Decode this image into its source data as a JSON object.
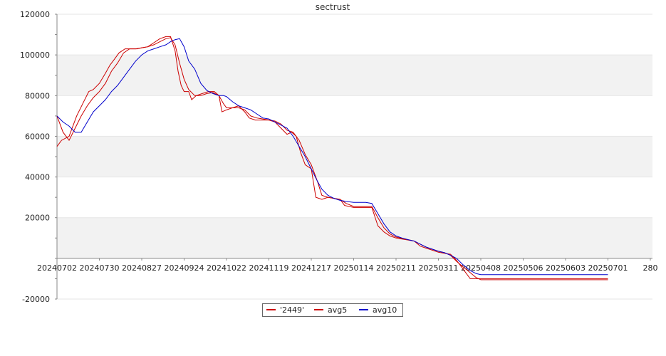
{
  "chart_data": {
    "type": "line",
    "title": "sectrust",
    "xlabel": "",
    "ylabel": "",
    "x_ticks": [
      "20240702",
      "20240730",
      "20240827",
      "20240924",
      "20241022",
      "20241119",
      "20241217",
      "20250114",
      "20250211",
      "20250311",
      "20250408",
      "20250506",
      "20250603",
      "20250701",
      "280"
    ],
    "y_ticks": [
      -20000,
      20000,
      40000,
      60000,
      80000,
      100000,
      120000
    ],
    "ylim": [
      -20000,
      120000
    ],
    "grid": "horizontal bands",
    "legend_position": "bottom-center",
    "colors": {
      "2449": "#cc0000",
      "avg5": "#cc0000",
      "avg10": "#0000cc",
      "band": "#f2f2f2",
      "grid": "#e6e6e6"
    },
    "series": [
      {
        "name": "'2449'",
        "points": [
          [
            "20240702",
            55000
          ],
          [
            "20240705",
            58000
          ],
          [
            "20240710",
            60000
          ],
          [
            "20240715",
            70000
          ],
          [
            "20240719",
            76000
          ],
          [
            "20240723",
            82000
          ],
          [
            "20240726",
            83000
          ],
          [
            "20240730",
            86000
          ],
          [
            "20240803",
            91000
          ],
          [
            "20240806",
            95000
          ],
          [
            "20240809",
            98000
          ],
          [
            "20240812",
            101000
          ],
          [
            "20240816",
            103000
          ],
          [
            "20240820",
            103000
          ],
          [
            "20240824",
            103000
          ],
          [
            "20240827",
            103500
          ],
          [
            "20240831",
            104000
          ],
          [
            "20240904",
            106000
          ],
          [
            "20240908",
            108000
          ],
          [
            "20240912",
            109000
          ],
          [
            "20240915",
            109000
          ],
          [
            "20240918",
            102000
          ],
          [
            "20240920",
            92000
          ],
          [
            "20240922",
            85000
          ],
          [
            "20240924",
            82000
          ],
          [
            "20240927",
            82000
          ],
          [
            "20240929",
            78000
          ],
          [
            "20241002",
            80000
          ],
          [
            "20241006",
            81000
          ],
          [
            "20241010",
            82000
          ],
          [
            "20241014",
            82000
          ],
          [
            "20241017",
            80000
          ],
          [
            "20241019",
            72000
          ],
          [
            "20241022",
            73000
          ],
          [
            "20241026",
            74000
          ],
          [
            "20241030",
            75000
          ],
          [
            "20241103",
            72000
          ],
          [
            "20241106",
            69000
          ],
          [
            "20241110",
            68000
          ],
          [
            "20241114",
            68000
          ],
          [
            "20241119",
            68000
          ],
          [
            "20241123",
            67000
          ],
          [
            "20241127",
            64000
          ],
          [
            "20241201",
            61000
          ],
          [
            "20241204",
            62000
          ],
          [
            "20241207",
            60000
          ],
          [
            "20241210",
            52000
          ],
          [
            "20241213",
            46000
          ],
          [
            "20241217",
            44000
          ],
          [
            "20241220",
            30000
          ],
          [
            "20241224",
            29000
          ],
          [
            "20241228",
            30000
          ],
          [
            "20250101",
            29500
          ],
          [
            "20250105",
            29000
          ],
          [
            "20250108",
            26000
          ],
          [
            "20250114",
            25000
          ],
          [
            "20250118",
            25000
          ],
          [
            "20250122",
            25000
          ],
          [
            "20250126",
            25000
          ],
          [
            "20250130",
            16000
          ],
          [
            "20250203",
            13000
          ],
          [
            "20250207",
            11000
          ],
          [
            "20250211",
            10000
          ],
          [
            "20250215",
            9500
          ],
          [
            "20250219",
            9000
          ],
          [
            "20250223",
            8500
          ],
          [
            "20250227",
            6000
          ],
          [
            "20250303",
            5000
          ],
          [
            "20250307",
            4000
          ],
          [
            "20250311",
            3000
          ],
          [
            "20250315",
            2500
          ],
          [
            "20250319",
            2000
          ],
          [
            "20250323",
            -1000
          ],
          [
            "20250327",
            -5000
          ],
          [
            "20250401",
            -10000
          ],
          [
            "20250405",
            -10000
          ],
          [
            "20250408",
            -10000
          ],
          [
            "20250506",
            -10000
          ],
          [
            "20250603",
            -10000
          ],
          [
            "20250701",
            -10000
          ]
        ]
      },
      {
        "name": "avg5",
        "points": [
          [
            "20240702",
            70000
          ],
          [
            "20240706",
            62000
          ],
          [
            "20240710",
            58000
          ],
          [
            "20240714",
            64000
          ],
          [
            "20240718",
            70000
          ],
          [
            "20240722",
            75000
          ],
          [
            "20240726",
            79000
          ],
          [
            "20240730",
            82000
          ],
          [
            "20240803",
            86000
          ],
          [
            "20240807",
            92000
          ],
          [
            "20240811",
            96000
          ],
          [
            "20240815",
            101000
          ],
          [
            "20240819",
            103000
          ],
          [
            "20240823",
            103000
          ],
          [
            "20240827",
            103500
          ],
          [
            "20240831",
            104000
          ],
          [
            "20240904",
            105000
          ],
          [
            "20240908",
            106500
          ],
          [
            "20240912",
            108000
          ],
          [
            "20240915",
            108500
          ],
          [
            "20240918",
            105000
          ],
          [
            "20240921",
            96000
          ],
          [
            "20240924",
            88000
          ],
          [
            "20240927",
            83000
          ],
          [
            "20241001",
            80000
          ],
          [
            "20241005",
            80000
          ],
          [
            "20241009",
            81000
          ],
          [
            "20241013",
            81500
          ],
          [
            "20241017",
            80000
          ],
          [
            "20241020",
            76000
          ],
          [
            "20241022",
            74000
          ],
          [
            "20241026",
            74000
          ],
          [
            "20241030",
            74000
          ],
          [
            "20241103",
            73000
          ],
          [
            "20241107",
            70000
          ],
          [
            "20241111",
            69000
          ],
          [
            "20241115",
            68500
          ],
          [
            "20241119",
            68000
          ],
          [
            "20241123",
            67500
          ],
          [
            "20241127",
            66000
          ],
          [
            "20241201",
            63000
          ],
          [
            "20241205",
            62000
          ],
          [
            "20241209",
            58000
          ],
          [
            "20241213",
            51000
          ],
          [
            "20241217",
            46000
          ],
          [
            "20241221",
            38000
          ],
          [
            "20241224",
            31000
          ],
          [
            "20241228",
            30000
          ],
          [
            "20250101",
            29500
          ],
          [
            "20250105",
            29000
          ],
          [
            "20250109",
            27000
          ],
          [
            "20250114",
            25500
          ],
          [
            "20250118",
            25500
          ],
          [
            "20250122",
            25500
          ],
          [
            "20250126",
            25500
          ],
          [
            "20250130",
            20000
          ],
          [
            "20250203",
            15000
          ],
          [
            "20250207",
            12000
          ],
          [
            "20250211",
            10500
          ],
          [
            "20250215",
            9800
          ],
          [
            "20250219",
            9200
          ],
          [
            "20250223",
            8500
          ],
          [
            "20250227",
            7000
          ],
          [
            "20250303",
            5500
          ],
          [
            "20250307",
            4500
          ],
          [
            "20250311",
            3500
          ],
          [
            "20250315",
            2800
          ],
          [
            "20250319",
            1500
          ],
          [
            "20250323",
            -1500
          ],
          [
            "20250327",
            -4000
          ],
          [
            "20250401",
            -7000
          ],
          [
            "20250405",
            -9500
          ],
          [
            "20250408",
            -10500
          ],
          [
            "20250506",
            -10500
          ],
          [
            "20250603",
            -10500
          ],
          [
            "20250701",
            -10500
          ]
        ]
      },
      {
        "name": "avg10",
        "points": [
          [
            "20240702",
            70000
          ],
          [
            "20240706",
            67000
          ],
          [
            "20240710",
            65000
          ],
          [
            "20240714",
            62000
          ],
          [
            "20240718",
            62000
          ],
          [
            "20240722",
            67000
          ],
          [
            "20240726",
            72000
          ],
          [
            "20240730",
            75000
          ],
          [
            "20240803",
            78000
          ],
          [
            "20240807",
            82000
          ],
          [
            "20240811",
            85000
          ],
          [
            "20240815",
            89000
          ],
          [
            "20240819",
            93000
          ],
          [
            "20240823",
            97000
          ],
          [
            "20240827",
            100000
          ],
          [
            "20240831",
            102000
          ],
          [
            "20240904",
            103000
          ],
          [
            "20240908",
            104000
          ],
          [
            "20240912",
            105000
          ],
          [
            "20240915",
            106500
          ],
          [
            "20240918",
            107500
          ],
          [
            "20240921",
            108000
          ],
          [
            "20240924",
            104000
          ],
          [
            "20240927",
            97000
          ],
          [
            "20241001",
            93000
          ],
          [
            "20241005",
            86000
          ],
          [
            "20241009",
            82500
          ],
          [
            "20241013",
            81000
          ],
          [
            "20241017",
            80000
          ],
          [
            "20241020",
            80000
          ],
          [
            "20241022",
            79500
          ],
          [
            "20241026",
            77000
          ],
          [
            "20241030",
            75000
          ],
          [
            "20241103",
            74000
          ],
          [
            "20241107",
            73000
          ],
          [
            "20241111",
            71000
          ],
          [
            "20241115",
            69000
          ],
          [
            "20241119",
            68500
          ],
          [
            "20241123",
            67000
          ],
          [
            "20241127",
            65500
          ],
          [
            "20241201",
            64000
          ],
          [
            "20241205",
            60000
          ],
          [
            "20241209",
            55000
          ],
          [
            "20241213",
            50000
          ],
          [
            "20241217",
            44000
          ],
          [
            "20241221",
            38000
          ],
          [
            "20241224",
            34000
          ],
          [
            "20241228",
            31000
          ],
          [
            "20250101",
            29500
          ],
          [
            "20250105",
            28500
          ],
          [
            "20250109",
            28000
          ],
          [
            "20250114",
            27500
          ],
          [
            "20250118",
            27500
          ],
          [
            "20250122",
            27500
          ],
          [
            "20250126",
            27000
          ],
          [
            "20250130",
            22000
          ],
          [
            "20250203",
            17000
          ],
          [
            "20250207",
            13000
          ],
          [
            "20250211",
            11000
          ],
          [
            "20250215",
            10000
          ],
          [
            "20250219",
            9200
          ],
          [
            "20250223",
            8500
          ],
          [
            "20250227",
            7000
          ],
          [
            "20250303",
            5500
          ],
          [
            "20250307",
            4500
          ],
          [
            "20250311",
            3500
          ],
          [
            "20250315",
            2800
          ],
          [
            "20250319",
            1500
          ],
          [
            "20250323",
            0
          ],
          [
            "20250327",
            -3000
          ],
          [
            "20250401",
            -6000
          ],
          [
            "20250405",
            -7500
          ],
          [
            "20250408",
            -8000
          ],
          [
            "20250506",
            -8000
          ],
          [
            "20250603",
            -8000
          ],
          [
            "20250701",
            -8000
          ]
        ]
      }
    ]
  }
}
